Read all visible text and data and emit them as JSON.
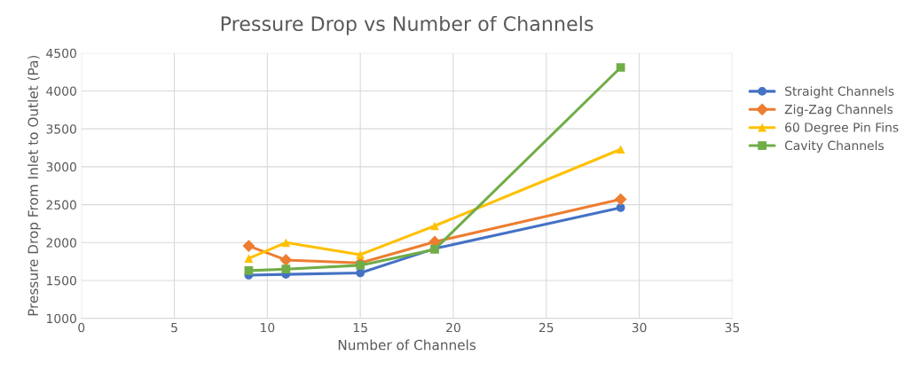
{
  "chart_data": {
    "type": "line",
    "title": "Pressure Drop vs Number of Channels",
    "xlabel": "Number of Channels",
    "ylabel": "Pressure Drop From Inlet to Outlet (Pa)",
    "x": [
      9,
      11,
      15,
      19,
      29
    ],
    "series": [
      {
        "name": "Straight Channels",
        "color": "#4472c4",
        "values": [
          1570,
          1580,
          1600,
          1920,
          2460
        ],
        "marker": "circle"
      },
      {
        "name": "Zig-Zag Channels",
        "color": "#ed7d31",
        "values": [
          1955,
          1770,
          1730,
          2010,
          2570
        ],
        "marker": "diamond"
      },
      {
        "name": "60 Degree Pin Fins",
        "color": "#ffc000",
        "values": [
          1790,
          2000,
          1840,
          2220,
          3230
        ],
        "marker": "triangle"
      },
      {
        "name": "Cavity Channels",
        "color": "#70ad47",
        "values": [
          1630,
          1650,
          1700,
          1910,
          4310
        ],
        "marker": "square"
      }
    ],
    "xlim": [
      0,
      35
    ],
    "xticks": [
      0,
      5,
      10,
      15,
      20,
      25,
      30,
      35
    ],
    "ylim": [
      1000,
      4500
    ],
    "yticks": [
      1000,
      1500,
      2000,
      2500,
      3000,
      3500,
      4000,
      4500
    ],
    "grid": true,
    "legend": "right",
    "line_style": "solid"
  }
}
